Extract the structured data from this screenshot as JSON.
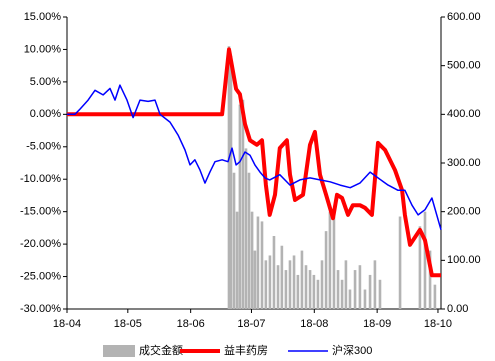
{
  "chart_data": {
    "type": "line",
    "xlim": [
      0,
      184.5
    ],
    "xticks": [
      {
        "value": 0,
        "label": "18-04"
      },
      {
        "value": 30,
        "label": "18-05"
      },
      {
        "value": 61,
        "label": "18-06"
      },
      {
        "value": 91,
        "label": "18-07"
      },
      {
        "value": 122,
        "label": "18-08"
      },
      {
        "value": 153,
        "label": "18-09"
      },
      {
        "value": 183,
        "label": "18-10"
      }
    ],
    "ylim": [
      -30,
      15
    ],
    "yticks": [
      {
        "value": -30,
        "label": "-30.00%"
      },
      {
        "value": -25,
        "label": "-25.00%"
      },
      {
        "value": -20,
        "label": "-20.00%"
      },
      {
        "value": -15,
        "label": "-15.00%"
      },
      {
        "value": -10,
        "label": "-10.00%"
      },
      {
        "value": -5,
        "label": "-5.00%"
      },
      {
        "value": 0,
        "label": "0.00%"
      },
      {
        "value": 5,
        "label": "5.00%"
      },
      {
        "value": 10,
        "label": "10.00%"
      },
      {
        "value": 15,
        "label": "15.00%"
      }
    ],
    "y2lim": [
      0,
      600
    ],
    "y2ticks": [
      {
        "value": 0,
        "label": "0.00"
      },
      {
        "value": 100,
        "label": "100.00"
      },
      {
        "value": 200,
        "label": "200.00"
      },
      {
        "value": 300,
        "label": "300.00"
      },
      {
        "value": 400,
        "label": "400.00"
      },
      {
        "value": 500,
        "label": "500.00"
      },
      {
        "value": 600,
        "label": "600.00"
      }
    ],
    "series": [
      {
        "name": "成交金额",
        "type": "bar",
        "axis": "y2",
        "color": "#b3b3b3",
        "x": [
          79.9,
          80.9,
          82.4,
          83.9,
          85.3,
          86.8,
          88.3,
          89.8,
          91.3,
          92.7,
          94.2,
          96.2,
          98.1,
          100.1,
          102.1,
          104.1,
          106,
          108,
          110,
          112,
          113.9,
          115.9,
          117.9,
          119.9,
          121.8,
          123.8,
          125.8,
          127.8,
          129.7,
          131.7,
          133.7,
          135.7,
          137.6,
          139.6,
          142.1,
          144.5,
          147,
          149.5,
          151.9,
          154.4,
          164.3,
          174.1,
          176.6,
          179.1,
          181.5
        ],
        "values": [
          540,
          520,
          280,
          200,
          420,
          430,
          330,
          280,
          200,
          120,
          190,
          180,
          100,
          110,
          150,
          90,
          130,
          80,
          100,
          110,
          70,
          120,
          90,
          80,
          70,
          60,
          100,
          160,
          200,
          190,
          80,
          60,
          100,
          40,
          80,
          90,
          40,
          70,
          100,
          60,
          190,
          170,
          200,
          120,
          50
        ]
      },
      {
        "name": "益丰药房",
        "type": "line",
        "color": "#ff0000",
        "width": 4,
        "x": [
          0,
          76.5,
          79.9,
          83.4,
          85.3,
          87.8,
          90.3,
          93.7,
          96.2,
          98.1,
          100,
          102.6,
          105,
          108.5,
          110,
          112.5,
          116.4,
          119.9,
          122.3,
          124.8,
          127.8,
          131.2,
          133.2,
          135.7,
          138.6,
          141,
          144.5,
          147,
          150.4,
          153.4,
          156.9,
          161.8,
          165.3,
          166.7,
          169.2,
          174.1,
          176.6,
          180,
          184.5
        ],
        "values": [
          0,
          0,
          10,
          3.9,
          3.1,
          -1.5,
          -4,
          -4.7,
          -4,
          -10.9,
          -15.5,
          -12.4,
          -5.2,
          -4,
          -9.3,
          -13.2,
          -12.4,
          -4.7,
          -2.7,
          -9.3,
          -12.4,
          -16,
          -12.4,
          -12.9,
          -15.5,
          -14,
          -14,
          -14.4,
          -15.5,
          -4.4,
          -5.5,
          -8.6,
          -11.7,
          -15.5,
          -20.1,
          -17.8,
          -19.4,
          -24.8,
          -24.8
        ]
      },
      {
        "name": "沪深300",
        "type": "line",
        "color": "#0000ff",
        "width": 1.5,
        "x": [
          0,
          3.9,
          6.4,
          10.4,
          13.8,
          17.8,
          21.2,
          23.7,
          26.1,
          29.6,
          32.6,
          36,
          40,
          43.4,
          45.9,
          50.8,
          54.8,
          58.2,
          60.7,
          63.1,
          65.6,
          68.1,
          70.5,
          73,
          76.5,
          79.4,
          81.4,
          83.4,
          85.3,
          87.8,
          90.3,
          92.7,
          95.2,
          97.7,
          100,
          105,
          110,
          114.9,
          119.9,
          124.8,
          129.8,
          134.7,
          139.7,
          144.5,
          149.5,
          153.4,
          158.4,
          163.3,
          166.7,
          170.2,
          173.2,
          176.6,
          180,
          184.5
        ],
        "values": [
          0,
          0,
          0.8,
          2.2,
          3.7,
          3,
          4,
          2.2,
          4.5,
          2.2,
          -0.5,
          2.2,
          2,
          2.2,
          0,
          -1.2,
          -3.2,
          -5.5,
          -7.8,
          -7,
          -8.6,
          -10.6,
          -8.9,
          -7.3,
          -7,
          -7.3,
          -5.2,
          -7.8,
          -7.3,
          -5.8,
          -6.3,
          -7.8,
          -8.9,
          -9.8,
          -10.1,
          -9.3,
          -10.9,
          -10.1,
          -9.8,
          -10.1,
          -10.4,
          -10.9,
          -11.3,
          -10.6,
          -8.9,
          -9.8,
          -10.9,
          -11.7,
          -11.7,
          -14,
          -15.5,
          -14.7,
          -12.9,
          -17.8
        ]
      }
    ]
  }
}
